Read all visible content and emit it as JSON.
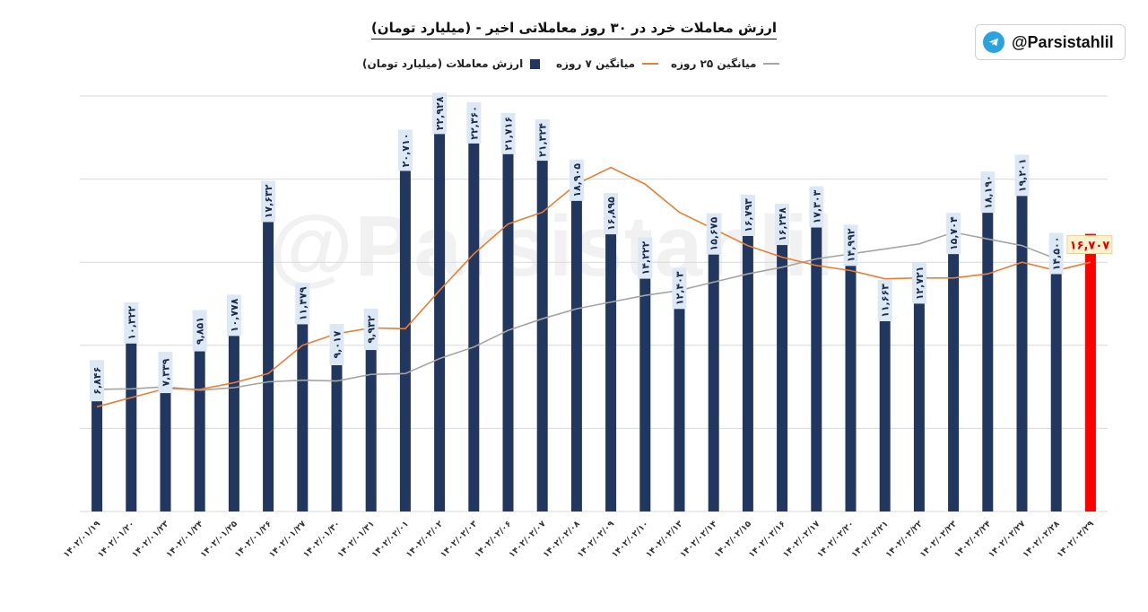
{
  "header": {
    "title": "ارزش معاملات خرد در ۳۰ روز معاملاتی اخیر - (میلیارد تومان)"
  },
  "brand": {
    "handle": "@Parsistahlil",
    "watermark": "@Parsistahlil",
    "icon": "telegram-icon"
  },
  "legend": {
    "bars": "ارزش معاملات (میلیارد تومان)",
    "ma7": "میانگین ۷ روزه",
    "ma25": "میانگین ۲۵ روزه"
  },
  "colors": {
    "bar": "#22375f",
    "last_bar": "#ff0000",
    "ma7": "#ed7d31",
    "ma25": "#a5a5a5",
    "grid": "#d9d9d9",
    "label_bg": "#dde8f5"
  },
  "chart_data": {
    "type": "bar",
    "title": "ارزش معاملات خرد در ۳۰ روز معاملاتی اخیر - (میلیارد تومان)",
    "ylim": [
      0,
      25000
    ],
    "grid": true,
    "legend_position": "top",
    "categories": [
      "۱۴۰۲/۰۱/۱۹",
      "۱۴۰۲/۰۱/۲۰",
      "۱۴۰۲/۰۱/۲۳",
      "۱۴۰۲/۰۱/۲۴",
      "۱۴۰۲/۰۱/۲۵",
      "۱۴۰۲/۰۱/۲۶",
      "۱۴۰۲/۰۱/۲۷",
      "۱۴۰۲/۰۱/۳۰",
      "۱۴۰۲/۰۱/۳۱",
      "۱۴۰۲/۰۲/۰۱",
      "۱۴۰۲/۰۲/۰۲",
      "۱۴۰۲/۰۲/۰۳",
      "۱۴۰۲/۰۲/۰۶",
      "۱۴۰۲/۰۲/۰۷",
      "۱۴۰۲/۰۲/۰۸",
      "۱۴۰۲/۰۲/۰۹",
      "۱۴۰۲/۰۲/۱۰",
      "۱۴۰۲/۰۲/۱۳",
      "۱۴۰۲/۰۲/۱۴",
      "۱۴۰۲/۰۲/۱۵",
      "۱۴۰۲/۰۲/۱۶",
      "۱۴۰۲/۰۲/۱۷",
      "۱۴۰۲/۰۲/۲۰",
      "۱۴۰۲/۰۲/۲۱",
      "۱۴۰۲/۰۲/۲۲",
      "۱۴۰۲/۰۲/۲۳",
      "۱۴۰۲/۰۲/۲۴",
      "۱۴۰۲/۰۲/۲۷",
      "۱۴۰۲/۰۲/۲۸",
      "۱۴۰۲/۰۲/۲۹"
    ],
    "series": [
      {
        "name": "ارزش معاملات (میلیارد تومان)",
        "kind": "bar",
        "values": [
          6846,
          10322,
          7339,
          9851,
          10778,
          17632,
          11479,
          9017,
          9932,
          20710,
          22928,
          22360,
          21716,
          21324,
          18905,
          16895,
          14222,
          12403,
          15675,
          16793,
          16248,
          17303,
          14992,
          11663,
          12721,
          15704,
          18190,
          19201,
          14500,
          16707
        ],
        "labels": [
          "۶,۸۴۶",
          "۱۰,۳۲۲",
          "۷,۳۳۹",
          "۹,۸۵۱",
          "۱۰,۷۷۸",
          "۱۷,۶۳۲",
          "۱۱,۴۷۹",
          "۹,۰۱۷",
          "۹,۹۳۲",
          "۲۰,۷۱۰",
          "۲۲,۹۲۸",
          "۲۲,۳۶۰",
          "۲۱,۷۱۶",
          "۲۱,۳۲۴",
          "۱۸,۹۰۵",
          "۱۶,۸۹۵",
          "۱۴,۲۲۲",
          "۱۲,۴۰۳",
          "۱۵,۶۷۵",
          "۱۶,۷۹۳",
          "۱۶,۲۴۸",
          "۱۷,۳۰۳",
          "۱۴,۹۹۲",
          "۱۱,۶۶۳",
          "۱۲,۷۲۱",
          "۱۵,۷۰۴",
          "۱۸,۱۹۰",
          "۱۹,۲۰۱",
          "۱۴,۵۰۰",
          "۱۶,۷۰۷"
        ]
      },
      {
        "name": "میانگین ۷ روزه",
        "kind": "line",
        "values": [
          6300,
          6850,
          7400,
          7350,
          7750,
          8300,
          10000,
          10700,
          11050,
          11000,
          13300,
          15500,
          17300,
          18000,
          19700,
          20700,
          19700,
          18000,
          17000,
          16000,
          15300,
          14800,
          14500,
          14000,
          14050,
          14050,
          14300,
          15000,
          14500,
          15000
        ]
      },
      {
        "name": "میانگین ۲۵ روزه",
        "kind": "line",
        "values": [
          7350,
          7380,
          7500,
          7300,
          7450,
          7800,
          7900,
          7850,
          8250,
          8300,
          9200,
          9900,
          10900,
          11600,
          12200,
          12600,
          13000,
          13300,
          13800,
          14300,
          14700,
          15200,
          15500,
          15800,
          16100,
          16800,
          16400,
          16000,
          15200,
          null
        ]
      }
    ]
  }
}
